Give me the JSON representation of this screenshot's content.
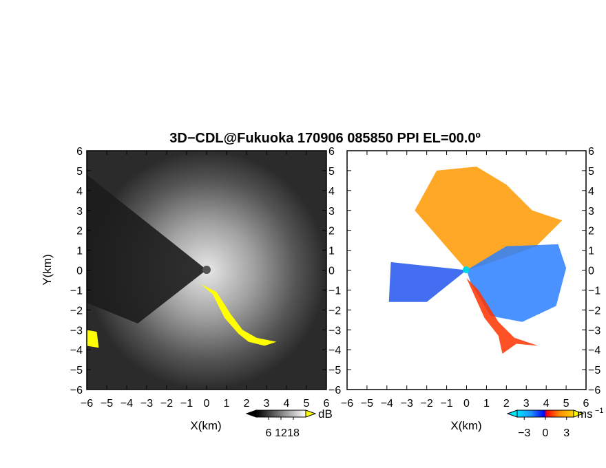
{
  "title": "3D−CDL@Fukuoka 170906 085850 PPI EL=00.0º",
  "chart_data": [
    {
      "type": "heatmap",
      "name": "reflectivity-panel",
      "xlabel": "X(km)",
      "ylabel": "Y(km)",
      "xlim": [
        -6,
        6
      ],
      "ylim": [
        -6,
        6
      ],
      "xticks": [
        "−6",
        "−5",
        "−4",
        "−3",
        "−2",
        "−1",
        "0",
        "1",
        "2",
        "3",
        "4",
        "5",
        "6"
      ],
      "yticks": [
        "6",
        "5",
        "4",
        "3",
        "2",
        "1",
        "0",
        "−1",
        "−2",
        "−3",
        "−4",
        "−5",
        "−6"
      ],
      "colorbar": {
        "unit": "dB",
        "ticks": [
          "6",
          "12",
          "18"
        ],
        "tick_values": [
          6,
          12,
          18
        ],
        "range": [
          0,
          24
        ],
        "colors": [
          "#000000",
          "#ffffff"
        ],
        "over_color": "#ffff00",
        "under_color": "#000000"
      },
      "background_color": "#2b2b2b",
      "highlight_color": "#ffff00",
      "highlight_regions": [
        {
          "label": "yellow echo band",
          "points": [
            [
              -0.3,
              -0.7
            ],
            [
              0.3,
              -1.2
            ],
            [
              0.9,
              -2.4
            ],
            [
              1.6,
              -3.2
            ],
            [
              2.1,
              -3.6
            ],
            [
              2.9,
              -3.8
            ],
            [
              3.5,
              -3.6
            ],
            [
              2.5,
              -3.4
            ],
            [
              1.8,
              -3.0
            ],
            [
              1.2,
              -2.2
            ],
            [
              0.5,
              -1.1
            ]
          ]
        },
        {
          "label": "yellow west edge",
          "points": [
            [
              -6.0,
              -3.0
            ],
            [
              -5.5,
              -3.1
            ],
            [
              -5.4,
              -3.9
            ],
            [
              -6.0,
              -3.8
            ]
          ]
        }
      ]
    },
    {
      "type": "heatmap",
      "name": "doppler-velocity-panel",
      "xlabel": "X(km)",
      "xlim": [
        -6,
        6
      ],
      "ylim": [
        -6,
        6
      ],
      "xticks": [
        "−6",
        "−5",
        "−4",
        "−3",
        "−2",
        "−1",
        "0",
        "1",
        "2",
        "3",
        "4",
        "5",
        "6"
      ],
      "yticks": [
        "6",
        "5",
        "4",
        "3",
        "2",
        "1",
        "0",
        "−1",
        "−2",
        "−3",
        "−4",
        "−5",
        "−6"
      ],
      "colorbar": {
        "unit": "ms",
        "unit_superscript": "−1",
        "ticks": [
          "−3",
          "0",
          "3"
        ],
        "tick_values": [
          -3,
          0,
          3
        ],
        "range": [
          -4,
          4
        ],
        "colors": [
          "#00e5ff",
          "#1e90ff",
          "#0000ff",
          "#ff0000",
          "#ff8c00",
          "#ffd700"
        ],
        "under_color": "#00e5ff",
        "over_color": "#ffff00"
      },
      "background_color": "#ffffff",
      "regions": [
        {
          "label": "receding (warm)",
          "color": "#ff9900",
          "points": [
            [
              0,
              0
            ],
            [
              -2.6,
              3.0
            ],
            [
              -1.5,
              5.0
            ],
            [
              0.5,
              5.2
            ],
            [
              2.0,
              4.3
            ],
            [
              3.3,
              3.0
            ],
            [
              4.8,
              2.5
            ],
            [
              3.5,
              1.2
            ],
            [
              1.0,
              0.3
            ]
          ]
        },
        {
          "label": "approaching (blue)",
          "color": "#2a7fff",
          "points": [
            [
              0,
              0
            ],
            [
              2.0,
              1.2
            ],
            [
              4.6,
              1.3
            ],
            [
              5.0,
              0.1
            ],
            [
              4.5,
              -1.8
            ],
            [
              2.8,
              -2.6
            ],
            [
              1.2,
              -2.3
            ],
            [
              0.2,
              -0.6
            ]
          ]
        },
        {
          "label": "west sector",
          "color": "#2255ee",
          "points": [
            [
              0,
              0
            ],
            [
              -3.8,
              0.4
            ],
            [
              -3.9,
              -1.6
            ],
            [
              -2.0,
              -1.6
            ],
            [
              -1.0,
              -0.8
            ]
          ]
        },
        {
          "label": "southern echo",
          "color": "#ff3300",
          "points": [
            [
              0,
              -0.4
            ],
            [
              0.9,
              -2.4
            ],
            [
              1.6,
              -3.3
            ],
            [
              1.8,
              -4.2
            ],
            [
              2.5,
              -3.7
            ],
            [
              3.6,
              -3.8
            ],
            [
              2.4,
              -3.4
            ],
            [
              1.6,
              -2.6
            ],
            [
              0.6,
              -1.0
            ]
          ]
        }
      ]
    }
  ]
}
